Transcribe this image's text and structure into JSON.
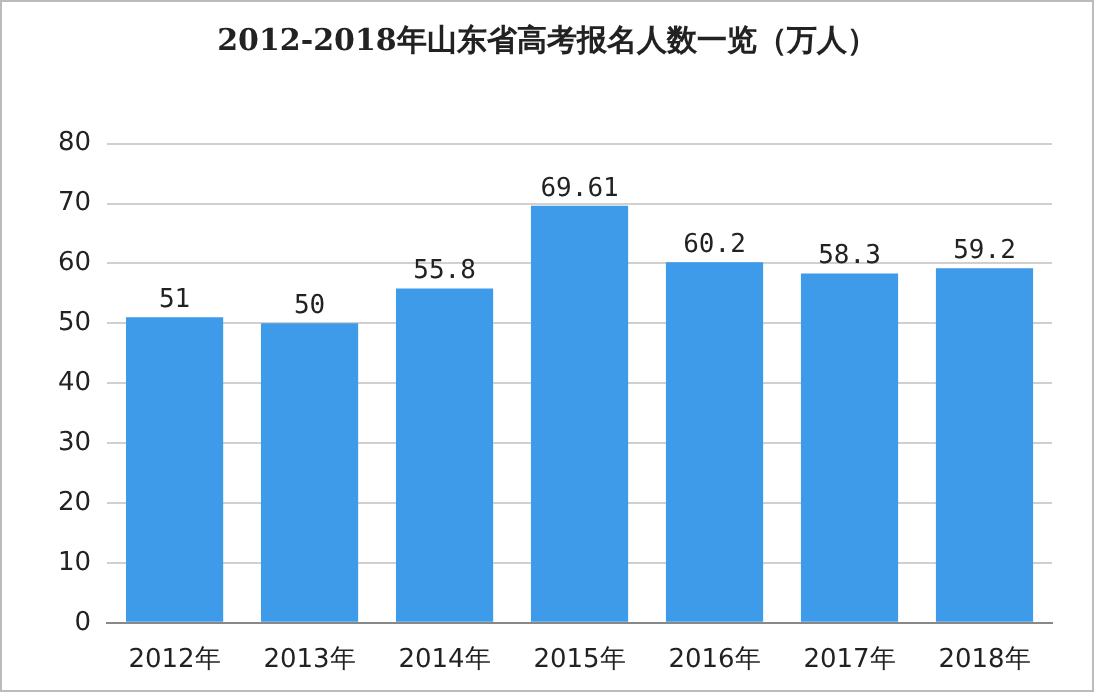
{
  "chart_data": {
    "type": "bar",
    "title": "2012-2018年山东省高考报名人数一览（万人）",
    "categories": [
      "2012年",
      "2013年",
      "2014年",
      "2015年",
      "2016年",
      "2017年",
      "2018年"
    ],
    "values": [
      51,
      50,
      55.8,
      69.61,
      60.2,
      58.3,
      59.2
    ],
    "color": "#3d9be9",
    "ylim": [
      0,
      80
    ],
    "yticks": [
      0,
      10,
      20,
      30,
      40,
      50,
      60,
      70,
      80
    ],
    "grid": "y",
    "data_labels": true,
    "legend": false
  }
}
